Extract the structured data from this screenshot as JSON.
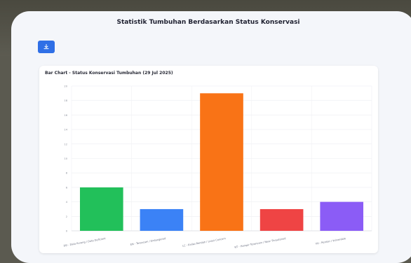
{
  "page": {
    "title": "Statistik Tumbuhan Berdasarkan Status Konservasi",
    "download_icon": "download-icon"
  },
  "card": {
    "title": "Bar Chart - Status Konservasi Tumbuhan (29 Jul 2025)"
  },
  "colors": {
    "accent": "#2f6fe6",
    "bars": [
      "#22c05a",
      "#3b82f6",
      "#f97316",
      "#ef4444",
      "#8b5cf6"
    ]
  },
  "chart_data": {
    "type": "bar",
    "title": "Bar Chart - Status Konservasi Tumbuhan (29 Jul 2025)",
    "categories": [
      "DD - Data Kurang / Data Deficient",
      "EN - Terancam / Endangered",
      "LC - Risiko Rendah / Least Concern",
      "NT - Hampir Terancam / Near Threatened",
      "VU - Rentan / Vulnerable"
    ],
    "values": [
      6,
      3,
      19,
      3,
      4
    ],
    "ylim": [
      0,
      20
    ],
    "yticks": [
      0,
      2,
      4,
      6,
      8,
      10,
      12,
      14,
      16,
      18,
      20
    ],
    "xlabel": "",
    "ylabel": "",
    "grid": true,
    "legend": "none"
  }
}
